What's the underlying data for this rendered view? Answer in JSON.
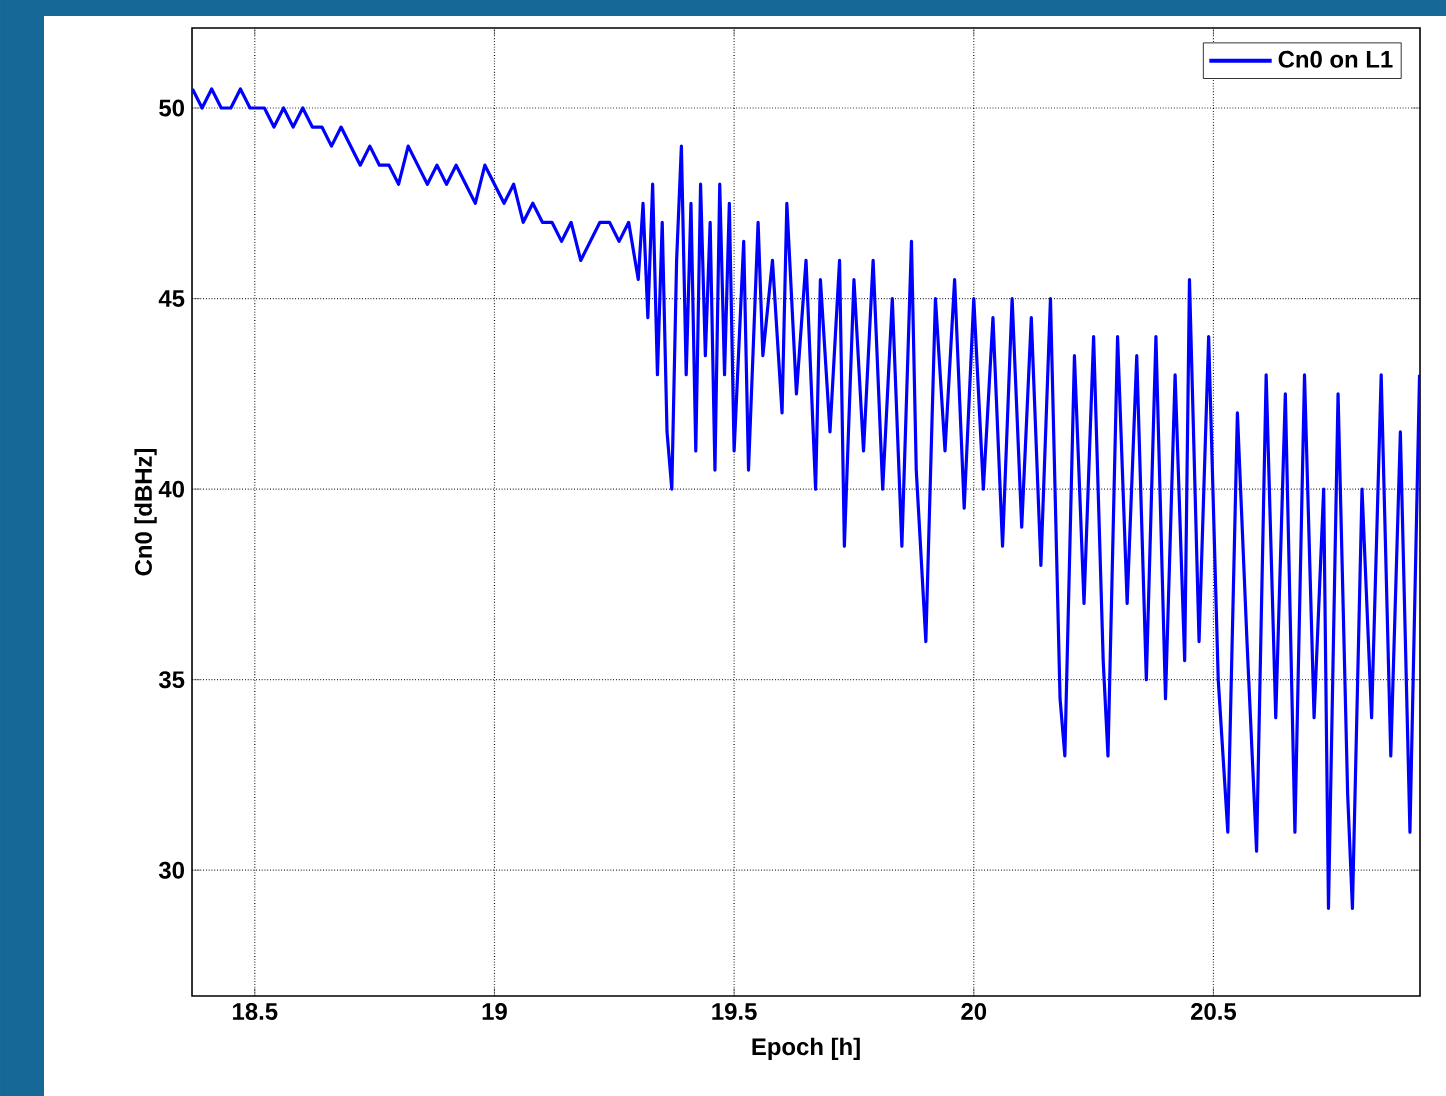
{
  "chart_data": {
    "type": "line",
    "xlabel": "Epoch [h]",
    "ylabel": "Cn0 [dBHz]",
    "xlim": [
      18.369,
      20.931
    ],
    "ylim": [
      26.7,
      52.1
    ],
    "xticks": [
      18.5,
      19,
      19.5,
      20,
      20.5
    ],
    "yticks": [
      30,
      35,
      40,
      45,
      50
    ],
    "grid": true,
    "legend": "top right",
    "marker": "none",
    "line_style": "solid",
    "series": [
      {
        "name": "Cn0 on L1",
        "color": "#0000ff",
        "x": [
          18.37,
          18.39,
          18.41,
          18.43,
          18.45,
          18.47,
          18.49,
          18.52,
          18.54,
          18.56,
          18.58,
          18.6,
          18.62,
          18.64,
          18.66,
          18.68,
          18.7,
          18.72,
          18.74,
          18.76,
          18.78,
          18.8,
          18.82,
          18.84,
          18.86,
          18.88,
          18.9,
          18.92,
          18.94,
          18.96,
          18.98,
          19.0,
          19.02,
          19.04,
          19.06,
          19.08,
          19.1,
          19.12,
          19.14,
          19.16,
          19.18,
          19.2,
          19.22,
          19.24,
          19.26,
          19.28,
          19.3,
          19.31,
          19.32,
          19.33,
          19.34,
          19.35,
          19.36,
          19.37,
          19.38,
          19.39,
          19.4,
          19.41,
          19.42,
          19.43,
          19.44,
          19.45,
          19.46,
          19.47,
          19.48,
          19.49,
          19.5,
          19.52,
          19.53,
          19.55,
          19.56,
          19.58,
          19.6,
          19.61,
          19.63,
          19.65,
          19.67,
          19.68,
          19.7,
          19.72,
          19.73,
          19.75,
          19.77,
          19.79,
          19.81,
          19.83,
          19.85,
          19.87,
          19.88,
          19.9,
          19.92,
          19.94,
          19.96,
          19.98,
          20.0,
          20.02,
          20.04,
          20.06,
          20.08,
          20.1,
          20.12,
          20.14,
          20.16,
          20.18,
          20.19,
          20.21,
          20.23,
          20.25,
          20.27,
          20.28,
          20.3,
          20.32,
          20.34,
          20.36,
          20.38,
          20.4,
          20.42,
          20.44,
          20.45,
          20.47,
          20.49,
          20.51,
          20.53,
          20.55,
          20.57,
          20.59,
          20.61,
          20.63,
          20.65,
          20.67,
          20.69,
          20.71,
          20.73,
          20.74,
          20.76,
          20.78,
          20.79,
          20.81,
          20.83,
          20.85,
          20.87,
          20.89,
          20.91,
          20.93
        ],
        "values": [
          50.5,
          50,
          50.5,
          50,
          50,
          50.5,
          50,
          50,
          49.5,
          50,
          49.5,
          50,
          49.5,
          49.5,
          49,
          49.5,
          49,
          48.5,
          49,
          48.5,
          48.5,
          48,
          49,
          48.5,
          48,
          48.5,
          48,
          48.5,
          48,
          47.5,
          48.5,
          48,
          47.5,
          48,
          47,
          47.5,
          47,
          47,
          46.5,
          47,
          46,
          46.5,
          47,
          47,
          46.5,
          47,
          45.5,
          47.5,
          44.5,
          48,
          43,
          47,
          41.5,
          40,
          46,
          49,
          43,
          47.5,
          41,
          48,
          43.5,
          47,
          40.5,
          48,
          43,
          47.5,
          41,
          46.5,
          40.5,
          47,
          43.5,
          46,
          42,
          47.5,
          42.5,
          46,
          40,
          45.5,
          41.5,
          46,
          38.5,
          45.5,
          41,
          46,
          40,
          45,
          38.5,
          46.5,
          40.5,
          36,
          45,
          41,
          45.5,
          39.5,
          45,
          40,
          44.5,
          38.5,
          45,
          39,
          44.5,
          38,
          45,
          34.5,
          33,
          43.5,
          37,
          44,
          35.5,
          33,
          44,
          37,
          43.5,
          35,
          44,
          34.5,
          43,
          35.5,
          45.5,
          36,
          44,
          35,
          31,
          42,
          36,
          30.5,
          43,
          34,
          42.5,
          31,
          43,
          34,
          40,
          29,
          42.5,
          32,
          29,
          40,
          34,
          43,
          33,
          41.5,
          31,
          43
        ]
      }
    ]
  }
}
